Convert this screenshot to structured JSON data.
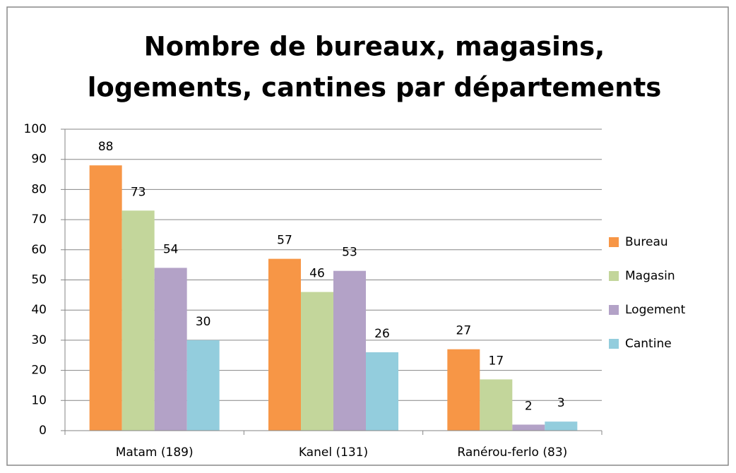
{
  "chart_data": {
    "type": "bar",
    "title": [
      "Nombre de bureaux, magasins,",
      "logements, cantines par départements"
    ],
    "categories": [
      "Matam (189)",
      "Kanel (131)",
      "Ranérou-ferlo (83)"
    ],
    "series": [
      {
        "name": "Bureau",
        "color": "#f79646",
        "values": [
          88,
          57,
          27
        ]
      },
      {
        "name": "Magasin",
        "color": "#c3d69b",
        "values": [
          73,
          46,
          17
        ]
      },
      {
        "name": "Logement",
        "color": "#b3a2c7",
        "values": [
          54,
          53,
          2
        ]
      },
      {
        "name": "Cantine",
        "color": "#93cddd",
        "values": [
          30,
          26,
          3
        ]
      }
    ],
    "ylim": [
      0,
      100
    ],
    "yticks": [
      0,
      10,
      20,
      30,
      40,
      50,
      60,
      70,
      80,
      90,
      100
    ],
    "grid": true,
    "legend": "right"
  }
}
